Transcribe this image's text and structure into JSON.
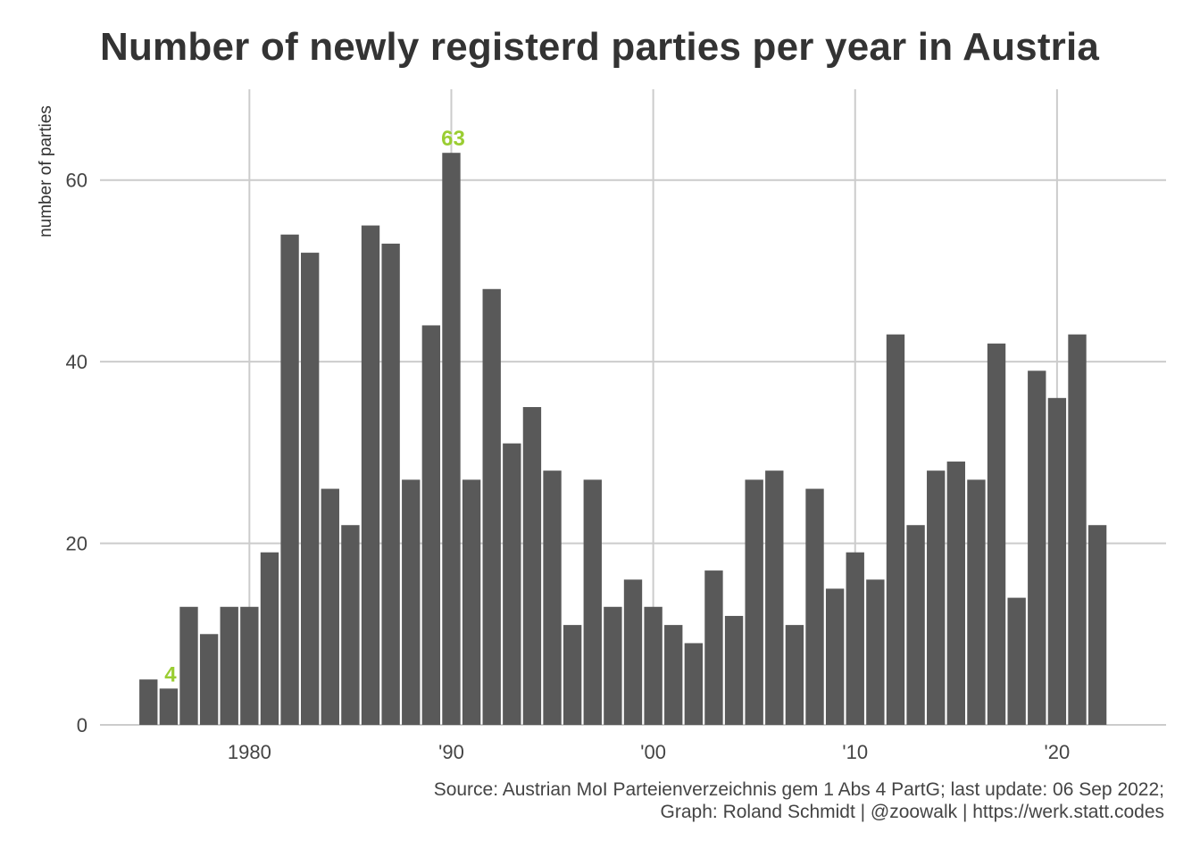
{
  "chart_data": {
    "type": "bar",
    "title": "Number of newly registerd parties per year in Austria",
    "ylabel": "number of parties",
    "xlabel": "",
    "ylim": [
      0,
      70
    ],
    "xlim": [
      1972.6,
      2025.4
    ],
    "grid": true,
    "bar_color": "#595959",
    "highlight_color": "#9ACD32",
    "years": [
      1975,
      1976,
      1977,
      1978,
      1979,
      1980,
      1981,
      1982,
      1983,
      1984,
      1985,
      1986,
      1987,
      1988,
      1989,
      1990,
      1991,
      1992,
      1993,
      1994,
      1995,
      1996,
      1997,
      1998,
      1999,
      2000,
      2001,
      2002,
      2003,
      2004,
      2005,
      2006,
      2007,
      2008,
      2009,
      2010,
      2011,
      2012,
      2013,
      2014,
      2015,
      2016,
      2017,
      2018,
      2019,
      2020,
      2021,
      2022
    ],
    "values": [
      5,
      4,
      13,
      10,
      13,
      13,
      19,
      54,
      52,
      26,
      22,
      55,
      53,
      27,
      44,
      63,
      27,
      48,
      31,
      35,
      28,
      11,
      27,
      13,
      16,
      13,
      11,
      9,
      17,
      12,
      27,
      28,
      11,
      26,
      15,
      19,
      16,
      43,
      22,
      28,
      29,
      27,
      42,
      14,
      39,
      36,
      43,
      22
    ],
    "x_ticks": [
      {
        "value": 1980,
        "label": "1980"
      },
      {
        "value": 1990,
        "label": "'90"
      },
      {
        "value": 2000,
        "label": "'00"
      },
      {
        "value": 2010,
        "label": "'10"
      },
      {
        "value": 2020,
        "label": "'20"
      }
    ],
    "y_ticks": [
      {
        "value": 0,
        "label": "0"
      },
      {
        "value": 20,
        "label": "20"
      },
      {
        "value": 40,
        "label": "40"
      },
      {
        "value": 60,
        "label": "60"
      }
    ],
    "annotations": [
      {
        "year": 1976,
        "value": 4,
        "text": "4"
      },
      {
        "year": 1990,
        "value": 63,
        "text": "63"
      }
    ]
  },
  "caption": {
    "line1": "Source: Austrian MoI Parteienverzeichnis gem 1 Abs 4 PartG; last update: 06 Sep 2022;",
    "line2": "Graph: Roland Schmidt | @zoowalk | https://werk.statt.codes"
  }
}
